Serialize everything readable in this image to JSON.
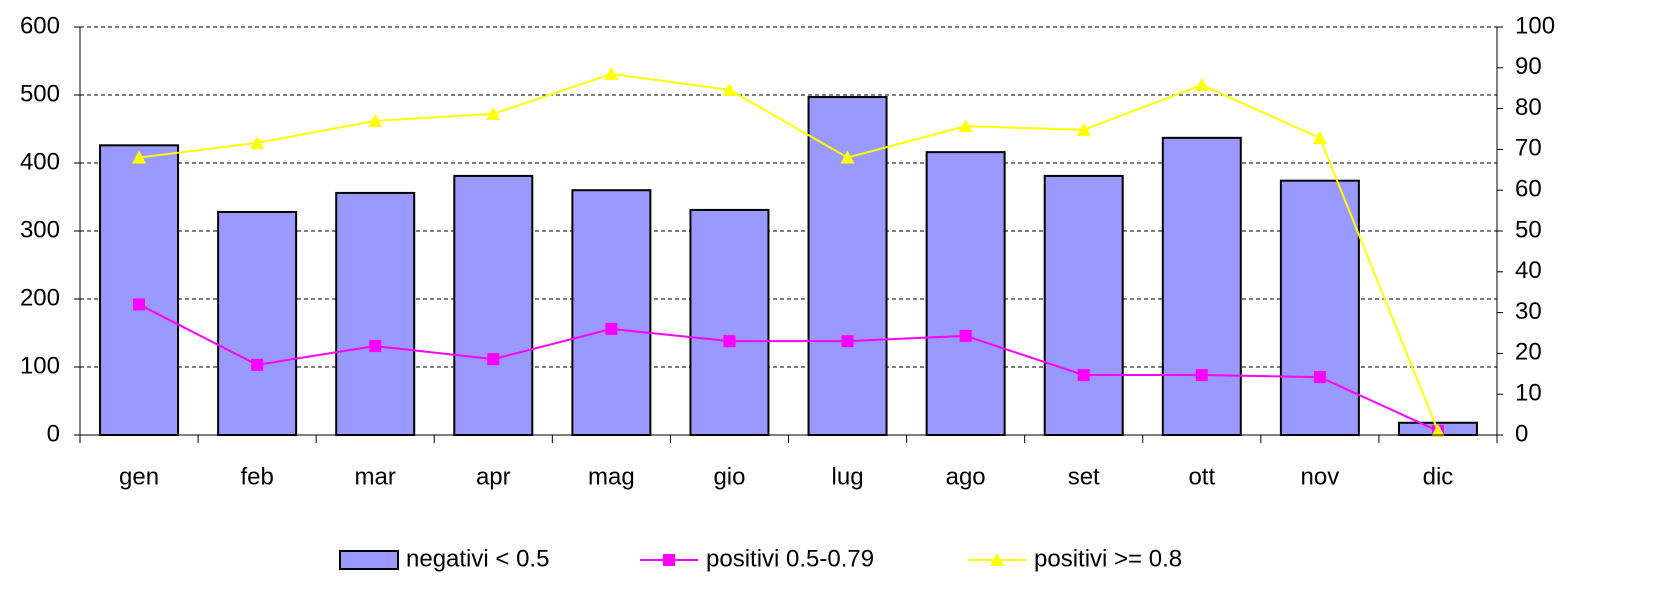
{
  "chart_data": {
    "type": "bar",
    "categories": [
      "gen",
      "feb",
      "mar",
      "apr",
      "mag",
      "gio",
      "lug",
      "ago",
      "set",
      "ott",
      "nov",
      "dic"
    ],
    "series": [
      {
        "name": "negativi < 0.5",
        "type": "bar",
        "color": "#9999ff",
        "values": [
          426,
          328,
          356,
          381,
          360,
          331,
          497,
          416,
          381,
          437,
          374,
          18
        ]
      },
      {
        "name": "positivi 0.5-0.79",
        "type": "line",
        "marker": "square",
        "axis": "y2",
        "color": "#ff00ff",
        "values": [
          32,
          17.2,
          21.8,
          18.6,
          26,
          23,
          23,
          24.3,
          14.7,
          14.7,
          14.2,
          1
        ]
      },
      {
        "name": "positivi >= 0.8",
        "type": "line",
        "marker": "triangle",
        "axis": "y2",
        "color": "#ffff00",
        "values": [
          68,
          71.6,
          77,
          78.7,
          88.5,
          84.6,
          68,
          75.7,
          74.8,
          85.8,
          72.8,
          1
        ]
      }
    ],
    "ylim": [
      0,
      600
    ],
    "yticks": [
      0,
      100,
      200,
      300,
      400,
      500,
      600
    ],
    "y2lim": [
      0,
      100
    ],
    "y2ticks": [
      0,
      10,
      20,
      30,
      40,
      50,
      60,
      70,
      80,
      90,
      100
    ],
    "grid": true,
    "legend": "bottom"
  }
}
